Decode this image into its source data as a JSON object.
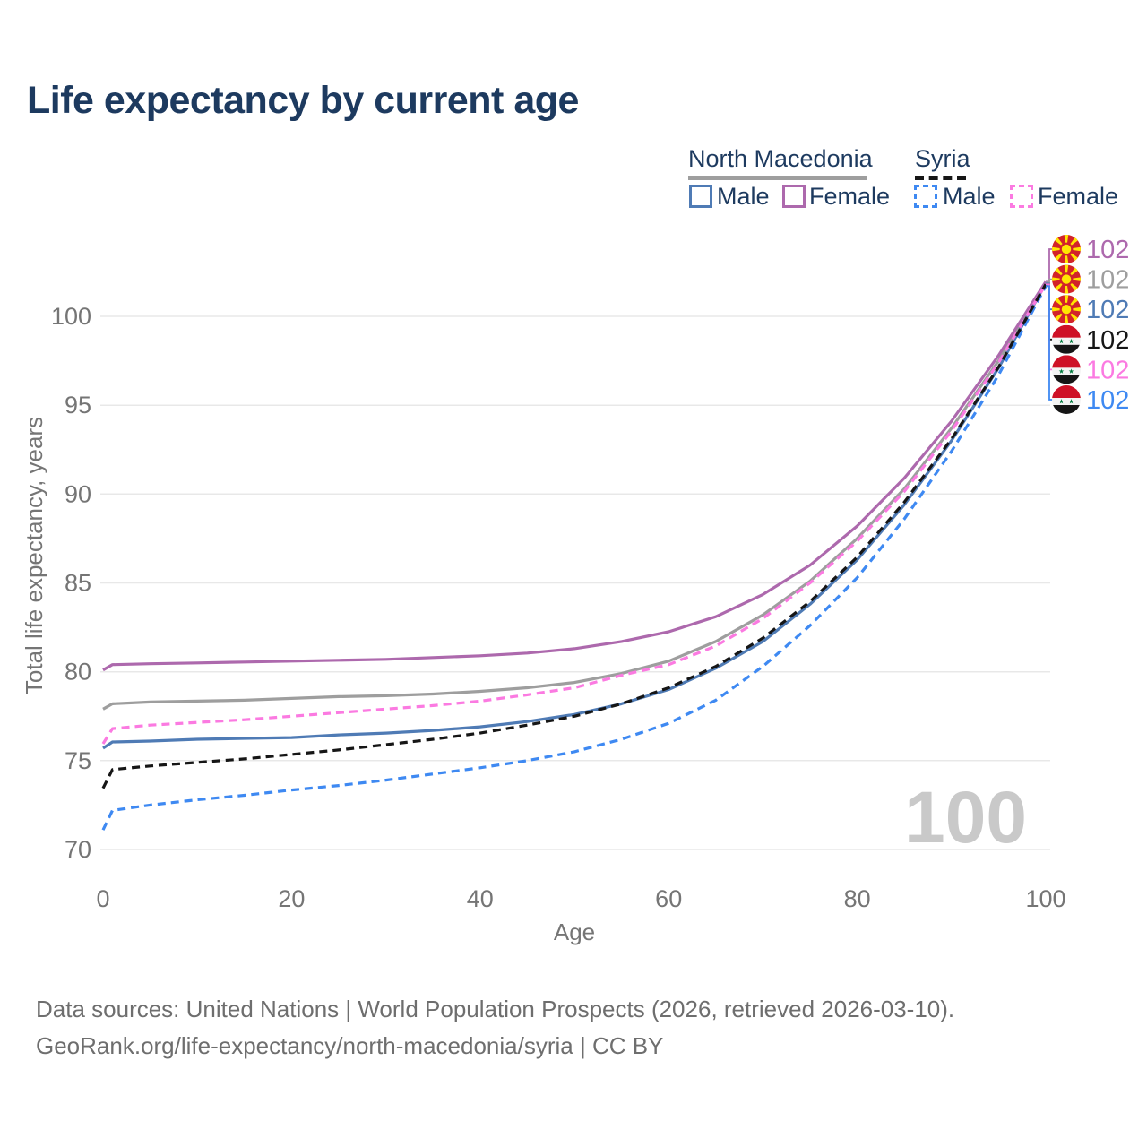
{
  "title": "Life expectancy by current age",
  "legend": {
    "group1": {
      "label": "North Macedonia",
      "male": "Male",
      "female": "Female",
      "male_color": "#4f7bb5",
      "female_color": "#ad69ad",
      "line_color": "#9e9e9e",
      "line_style": "solid"
    },
    "group2": {
      "label": "Syria",
      "male": "Male",
      "female": "Female",
      "male_color": "#3e89f2",
      "female_color": "#fb7ae1",
      "line_color": "#161616",
      "line_style": "dashed"
    }
  },
  "watermark_age": "100",
  "footer": {
    "line1": "Data sources: United Nations | World Population Prospects (2026, retrieved 2026-03-10).",
    "line2": "GeoRank.org/life-expectancy/north-macedonia/syria | CC BY"
  },
  "chart_data": {
    "type": "line",
    "title": "Life expectancy by current age",
    "xlabel": "Age",
    "ylabel": "Total life expectancy, years",
    "xlim": [
      0,
      100
    ],
    "ylim": [
      70,
      104
    ],
    "x_ticks": [
      0,
      20,
      40,
      60,
      80,
      100
    ],
    "y_ticks": [
      70,
      75,
      80,
      85,
      90,
      95,
      100
    ],
    "grid": "horizontal",
    "legend_position": "top-right",
    "x": [
      0,
      1,
      5,
      10,
      15,
      20,
      25,
      30,
      35,
      40,
      45,
      50,
      55,
      60,
      65,
      70,
      75,
      80,
      85,
      90,
      95,
      100
    ],
    "series": [
      {
        "name": "North Macedonia Female",
        "country": "North Macedonia",
        "sex": "Female",
        "style": "solid",
        "color": "#ad69ad",
        "flag": "mk",
        "end_label": "102",
        "values": [
          80.1,
          80.4,
          80.45,
          80.5,
          80.55,
          80.6,
          80.65,
          80.7,
          80.8,
          80.9,
          81.05,
          81.3,
          81.7,
          82.25,
          83.1,
          84.35,
          86.0,
          88.2,
          90.9,
          94.1,
          97.8,
          101.95
        ]
      },
      {
        "name": "North Macedonia Both sexes",
        "country": "North Macedonia",
        "sex": "Both",
        "style": "solid",
        "color": "#9e9e9e",
        "flag": "mk",
        "end_label": "102",
        "values": [
          77.9,
          78.2,
          78.3,
          78.35,
          78.4,
          78.5,
          78.6,
          78.65,
          78.75,
          78.9,
          79.1,
          79.4,
          79.9,
          80.6,
          81.7,
          83.2,
          85.1,
          87.5,
          90.3,
          93.7,
          97.5,
          101.9
        ]
      },
      {
        "name": "North Macedonia Male",
        "country": "North Macedonia",
        "sex": "Male",
        "style": "solid",
        "color": "#4f7bb5",
        "flag": "mk",
        "end_label": "102",
        "values": [
          75.7,
          76.05,
          76.1,
          76.2,
          76.25,
          76.3,
          76.45,
          76.55,
          76.7,
          76.9,
          77.2,
          77.6,
          78.2,
          79.0,
          80.2,
          81.7,
          83.8,
          86.3,
          89.4,
          93.0,
          97.1,
          101.85
        ]
      },
      {
        "name": "Syria Both sexes",
        "country": "Syria",
        "sex": "Both",
        "style": "dashed",
        "color": "#161616",
        "flag": "sy",
        "end_label": "102",
        "values": [
          73.45,
          74.5,
          74.7,
          74.9,
          75.1,
          75.35,
          75.6,
          75.9,
          76.2,
          76.55,
          77.0,
          77.5,
          78.2,
          79.1,
          80.3,
          81.9,
          83.95,
          86.45,
          89.55,
          93.1,
          97.15,
          101.8
        ]
      },
      {
        "name": "Syria Female",
        "country": "Syria",
        "sex": "Female",
        "style": "dashed",
        "color": "#fb7ae1",
        "flag": "sy",
        "end_label": "102",
        "values": [
          75.95,
          76.8,
          77.0,
          77.15,
          77.3,
          77.5,
          77.7,
          77.9,
          78.1,
          78.35,
          78.7,
          79.1,
          79.8,
          80.4,
          81.45,
          83.0,
          85.0,
          87.35,
          90.15,
          93.55,
          97.4,
          101.8
        ]
      },
      {
        "name": "Syria Male",
        "country": "Syria",
        "sex": "Male",
        "style": "dashed",
        "color": "#3e89f2",
        "flag": "sy",
        "end_label": "102",
        "values": [
          71.1,
          72.2,
          72.5,
          72.8,
          73.05,
          73.35,
          73.6,
          73.9,
          74.25,
          74.6,
          75.0,
          75.5,
          76.2,
          77.1,
          78.4,
          80.3,
          82.6,
          85.3,
          88.6,
          92.4,
          96.7,
          101.7
        ]
      }
    ],
    "colors": {
      "grid": "#e8e8e8",
      "tick_text": "#757575",
      "axis_title": "#757575",
      "watermark": "#c9c9c9"
    }
  }
}
